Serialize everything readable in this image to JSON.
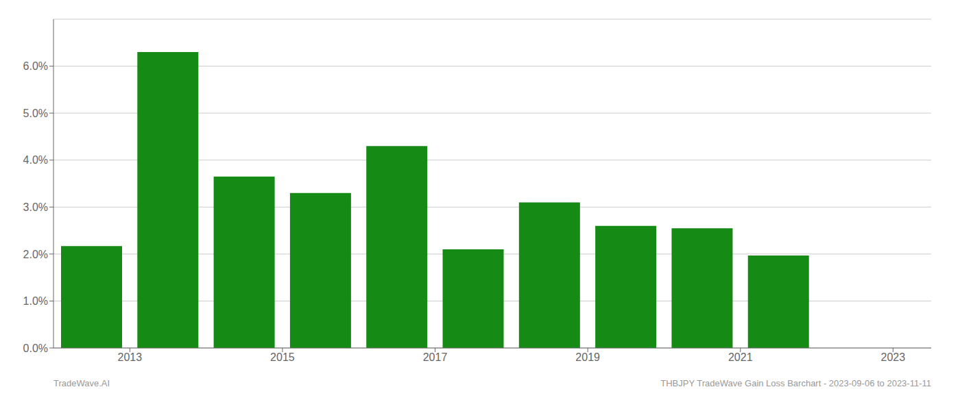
{
  "chart_data": {
    "type": "bar",
    "x": [
      2013,
      2014,
      2015,
      2016,
      2017,
      2018,
      2019,
      2020,
      2021,
      2022,
      2023
    ],
    "values": [
      0.0217,
      0.063,
      0.0365,
      0.033,
      0.043,
      0.021,
      0.031,
      0.026,
      0.0255,
      0.0197,
      0.0
    ],
    "color": "#158a15",
    "xlim": [
      2012.5,
      2024.0
    ],
    "xticks": [
      {
        "value": 2013.5,
        "label": "2013"
      },
      {
        "value": 2015.5,
        "label": "2015"
      },
      {
        "value": 2017.5,
        "label": "2017"
      },
      {
        "value": 2019.5,
        "label": "2019"
      },
      {
        "value": 2021.5,
        "label": "2021"
      },
      {
        "value": 2023.5,
        "label": "2023"
      }
    ],
    "ylim": [
      0.0,
      0.07
    ],
    "yticks": [
      {
        "value": 0.0,
        "label": "0.0%"
      },
      {
        "value": 0.01,
        "label": "1.0%"
      },
      {
        "value": 0.02,
        "label": "2.0%"
      },
      {
        "value": 0.03,
        "label": "3.0%"
      },
      {
        "value": 0.04,
        "label": "4.0%"
      },
      {
        "value": 0.05,
        "label": "5.0%"
      },
      {
        "value": 0.06,
        "label": "6.0%"
      }
    ],
    "grid": true,
    "annotations": [
      "TradeWave.AI",
      "THBJPY TradeWave Gain Loss Barchart - 2023-09-06 to 2023-11-11"
    ]
  }
}
